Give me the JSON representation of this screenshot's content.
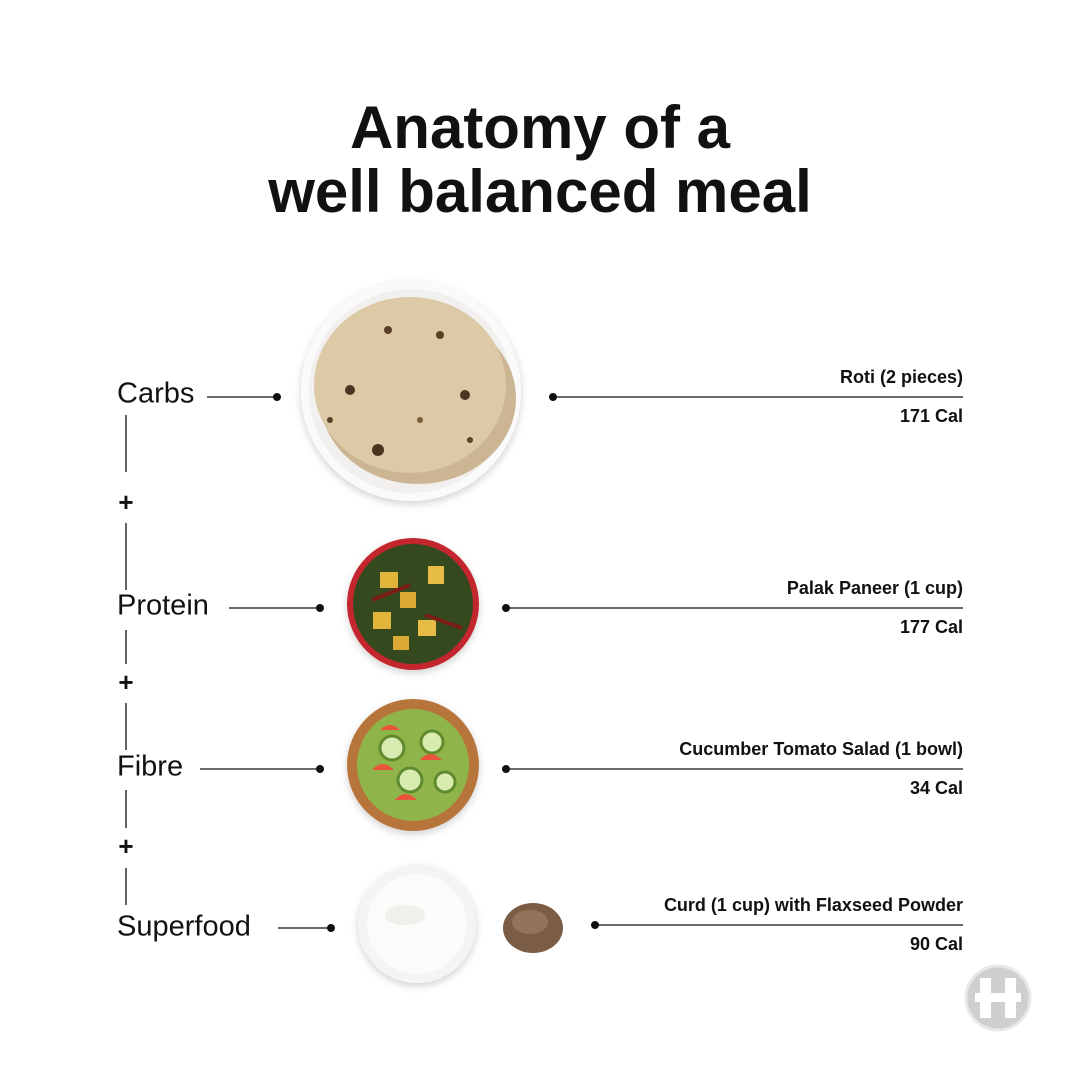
{
  "header": {
    "title_lines": [
      "Anatomy of a",
      "well balanced meal"
    ]
  },
  "rows": [
    {
      "category": "Carbs",
      "item": "Roti (2 pieces)",
      "calories": "171 Cal"
    },
    {
      "category": "Protein",
      "item": "Palak Paneer (1 cup)",
      "calories": "177 Cal"
    },
    {
      "category": "Fibre",
      "item": "Cucumber Tomato Salad (1 bowl)",
      "calories": "34 Cal"
    },
    {
      "category": "Superfood",
      "item": "Curd (1 cup) with Flaxseed Powder",
      "calories": "90 Cal"
    }
  ],
  "separators": [
    "+",
    "+",
    "+"
  ]
}
